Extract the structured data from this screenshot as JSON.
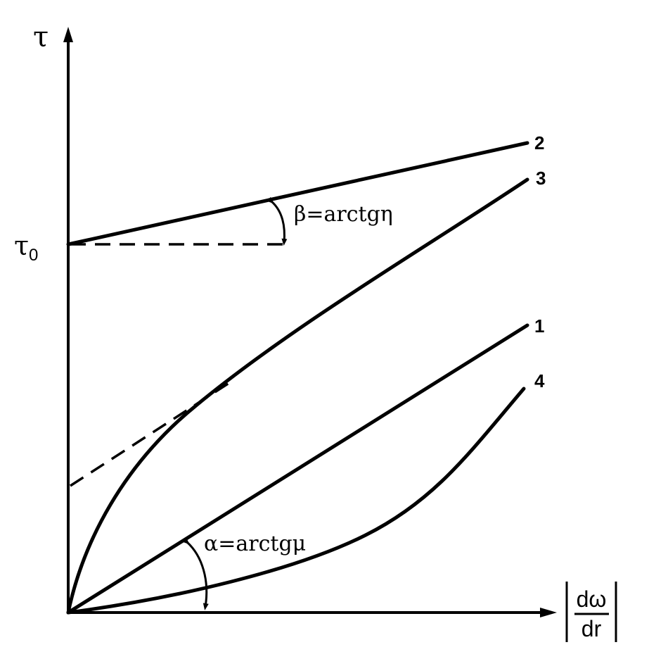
{
  "axes": {
    "y_label": "τ",
    "y_intercept_label": "τ",
    "y_intercept_sub": "0",
    "x_label_num": "dω",
    "x_label_den": "dr"
  },
  "curves": [
    {
      "id": "1",
      "label": "1"
    },
    {
      "id": "2",
      "label": "2"
    },
    {
      "id": "3",
      "label": "3"
    },
    {
      "id": "4",
      "label": "4"
    }
  ],
  "annotations": {
    "beta": "β=arctgη",
    "alpha": "α=arctgμ"
  }
}
